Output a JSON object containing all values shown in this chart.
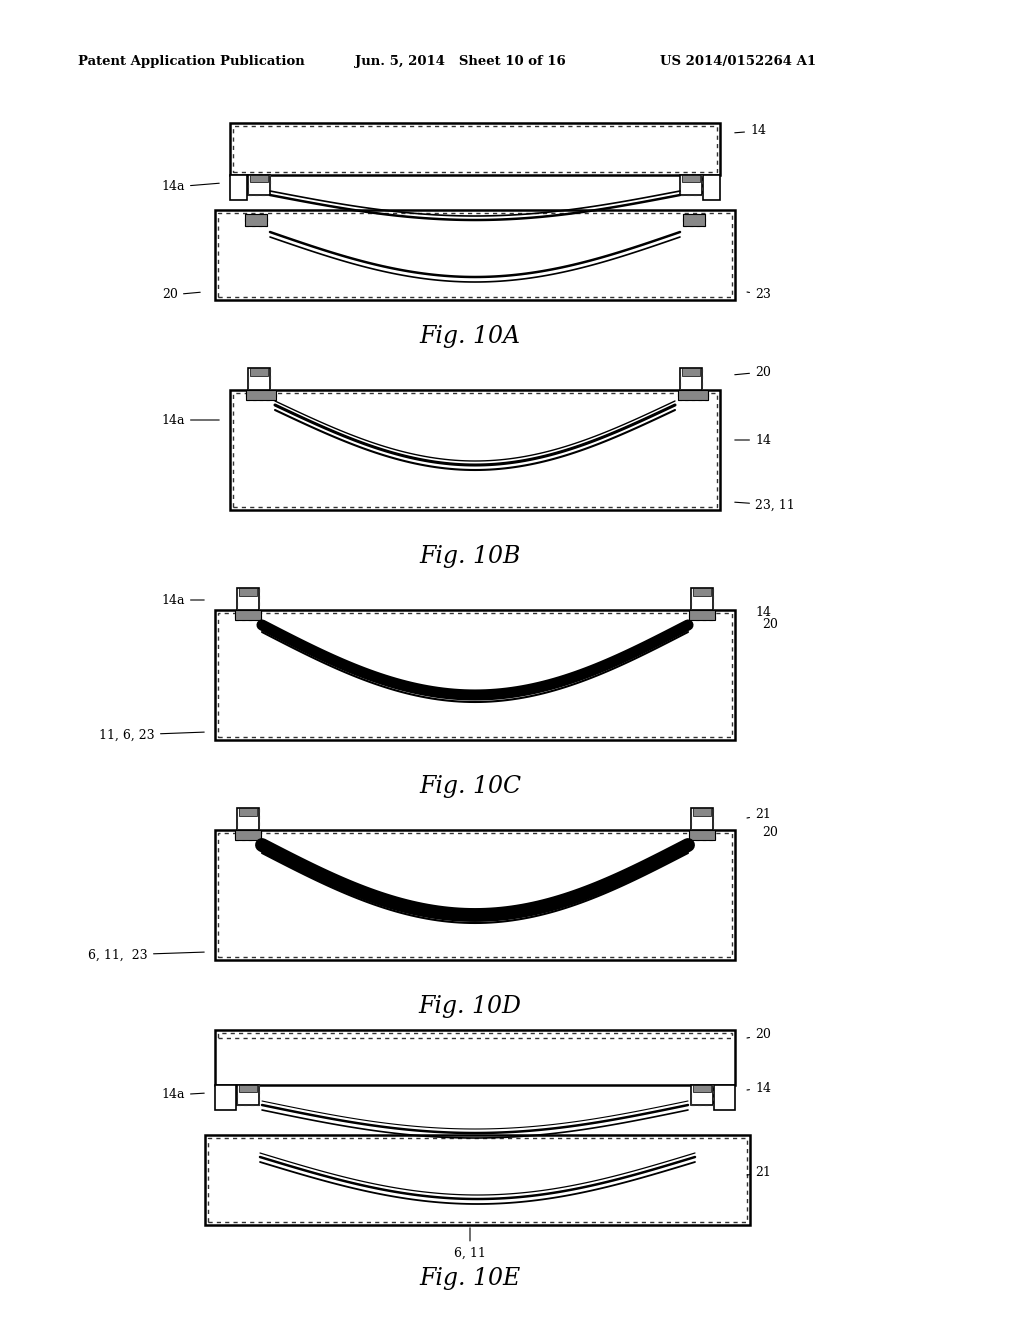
{
  "bg_color": "#ffffff",
  "header_left": "Patent Application Publication",
  "header_center": "Jun. 5, 2014   Sheet 10 of 16",
  "header_right": "US 2014/0152264 A1",
  "line_color": "#000000",
  "dot_color": "#555555"
}
